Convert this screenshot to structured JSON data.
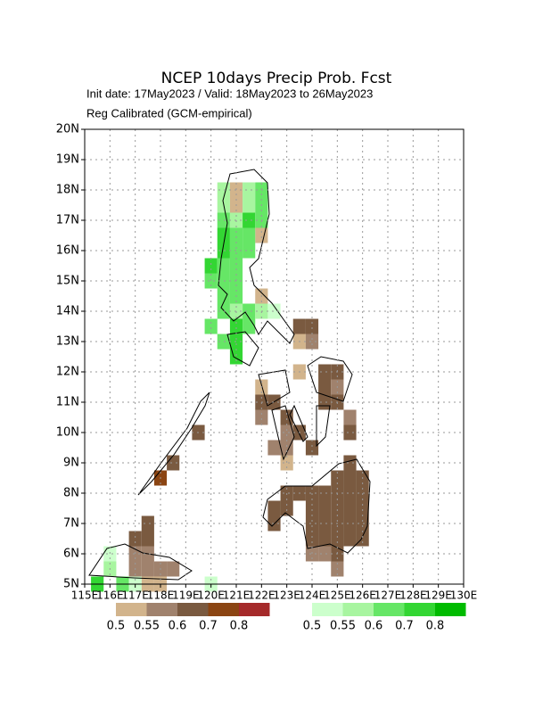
{
  "chart_data": {
    "type": "grid-map",
    "title": "NCEP 10days Precip Prob. Fcst",
    "subtitle": "Init date: 17May2023 / Valid: 18May2023 to 26May2023",
    "method": "Reg Calibrated (GCM-empirical)",
    "xlim": [
      115,
      130
    ],
    "ylim": [
      5,
      20
    ],
    "xticks": [
      {
        "value": 115,
        "label": "115E"
      },
      {
        "value": 116,
        "label": "116E"
      },
      {
        "value": 117,
        "label": "117E"
      },
      {
        "value": 118,
        "label": "118E"
      },
      {
        "value": 119,
        "label": "119E"
      },
      {
        "value": 120,
        "label": "120E"
      },
      {
        "value": 121,
        "label": "121E"
      },
      {
        "value": 122,
        "label": "122E"
      },
      {
        "value": 123,
        "label": "123E"
      },
      {
        "value": 124,
        "label": "124E"
      },
      {
        "value": 125,
        "label": "125E"
      },
      {
        "value": 126,
        "label": "126E"
      },
      {
        "value": 127,
        "label": "127E"
      },
      {
        "value": 128,
        "label": "128E"
      },
      {
        "value": 129,
        "label": "129E"
      },
      {
        "value": 130,
        "label": "130E"
      }
    ],
    "yticks": [
      {
        "value": 5,
        "label": "5N"
      },
      {
        "value": 6,
        "label": "6N"
      },
      {
        "value": 7,
        "label": "7N"
      },
      {
        "value": 8,
        "label": "8N"
      },
      {
        "value": 9,
        "label": "9N"
      },
      {
        "value": 10,
        "label": "10N"
      },
      {
        "value": 11,
        "label": "11N"
      },
      {
        "value": 12,
        "label": "12N"
      },
      {
        "value": 13,
        "label": "13N"
      },
      {
        "value": 14,
        "label": "14N"
      },
      {
        "value": 15,
        "label": "15N"
      },
      {
        "value": 16,
        "label": "16N"
      },
      {
        "value": 17,
        "label": "17N"
      },
      {
        "value": 18,
        "label": "18N"
      },
      {
        "value": 19,
        "label": "19N"
      },
      {
        "value": 20,
        "label": "20N"
      }
    ],
    "grid": true,
    "cell_size": 0.5,
    "legend_levels": [
      0.5,
      0.55,
      0.6,
      0.7,
      0.8
    ],
    "dry_colors": [
      "#d2b48c",
      "#a0826d",
      "#7a5a40",
      "#8b4513",
      "#a52a2a"
    ],
    "wet_colors": [
      "#ccffcc",
      "#a8f5a0",
      "#66e666",
      "#33d633",
      "#00bb00"
    ],
    "dry_cells": [
      [
        121,
        18,
        0.5
      ],
      [
        121,
        17.5,
        0.5
      ],
      [
        122,
        16.5,
        0.5
      ],
      [
        122,
        14.5,
        0.5
      ],
      [
        123.5,
        13.5,
        0.6
      ],
      [
        124,
        13.5,
        0.6
      ],
      [
        123.5,
        13,
        0.5
      ],
      [
        124,
        13,
        0.55
      ],
      [
        123.5,
        12,
        0.5
      ],
      [
        124.5,
        12,
        0.6
      ],
      [
        125,
        12,
        0.6
      ],
      [
        122,
        11.5,
        0.5
      ],
      [
        124.5,
        11.5,
        0.6
      ],
      [
        125,
        11.5,
        0.55
      ],
      [
        122,
        11,
        0.6
      ],
      [
        122.5,
        11,
        0.6
      ],
      [
        124.5,
        11,
        0.6
      ],
      [
        125,
        11,
        0.6
      ],
      [
        122,
        10.5,
        0.55
      ],
      [
        123,
        10.5,
        0.6
      ],
      [
        125.5,
        10.5,
        0.55
      ],
      [
        123,
        10,
        0.55
      ],
      [
        123.5,
        10,
        0.6
      ],
      [
        125.5,
        10,
        0.6
      ],
      [
        122.5,
        9.5,
        0.55
      ],
      [
        123,
        9.5,
        0.55
      ],
      [
        124,
        9.5,
        0.6
      ],
      [
        123,
        9,
        0.5
      ],
      [
        125.5,
        9,
        0.6
      ],
      [
        125,
        8.5,
        0.6
      ],
      [
        125.5,
        8.5,
        0.6
      ],
      [
        126,
        8.5,
        0.6
      ],
      [
        123,
        8,
        0.6
      ],
      [
        123.5,
        8,
        0.6
      ],
      [
        124,
        8,
        0.6
      ],
      [
        124.5,
        8,
        0.6
      ],
      [
        125,
        8,
        0.6
      ],
      [
        125.5,
        8,
        0.6
      ],
      [
        126,
        8,
        0.6
      ],
      [
        122.5,
        7.5,
        0.6
      ],
      [
        123,
        7.5,
        0.6
      ],
      [
        124,
        7.5,
        0.6
      ],
      [
        124.5,
        7.5,
        0.6
      ],
      [
        125,
        7.5,
        0.6
      ],
      [
        125.5,
        7.5,
        0.6
      ],
      [
        126,
        7.5,
        0.6
      ],
      [
        122.5,
        7,
        0.6
      ],
      [
        124,
        7,
        0.6
      ],
      [
        124.5,
        7,
        0.6
      ],
      [
        125,
        7,
        0.6
      ],
      [
        125.5,
        7,
        0.6
      ],
      [
        126,
        7,
        0.6
      ],
      [
        124,
        6.5,
        0.6
      ],
      [
        124.5,
        6.5,
        0.6
      ],
      [
        125,
        6.5,
        0.6
      ],
      [
        125.5,
        6.5,
        0.6
      ],
      [
        126,
        6.5,
        0.6
      ],
      [
        124,
        6,
        0.55
      ],
      [
        124.5,
        6,
        0.55
      ],
      [
        125,
        6,
        0.6
      ],
      [
        125,
        5.5,
        0.55
      ],
      [
        119.5,
        10,
        0.6
      ],
      [
        118.5,
        9,
        0.6
      ],
      [
        118,
        8.5,
        0.7
      ],
      [
        117.5,
        7,
        0.6
      ],
      [
        117,
        6.5,
        0.6
      ],
      [
        117.5,
        6.5,
        0.6
      ],
      [
        117,
        6,
        0.55
      ],
      [
        117.5,
        6,
        0.55
      ],
      [
        117,
        5.5,
        0.55
      ],
      [
        117.5,
        5.5,
        0.55
      ],
      [
        118,
        5.5,
        0.55
      ],
      [
        118.5,
        5.5,
        0.55
      ],
      [
        117.5,
        5,
        0.5
      ],
      [
        118,
        5,
        0.5
      ]
    ],
    "wet_cells": [
      [
        120.5,
        18,
        0.55
      ],
      [
        121.5,
        18,
        0.55
      ],
      [
        122,
        18,
        0.6
      ],
      [
        120.5,
        17.5,
        0.55
      ],
      [
        121.5,
        17.5,
        0.55
      ],
      [
        122,
        17.5,
        0.6
      ],
      [
        120.5,
        17,
        0.6
      ],
      [
        121,
        17,
        0.55
      ],
      [
        121.5,
        17,
        0.7
      ],
      [
        122,
        17,
        0.6
      ],
      [
        120.5,
        16.5,
        0.7
      ],
      [
        121,
        16.5,
        0.6
      ],
      [
        121.5,
        16.5,
        0.6
      ],
      [
        120.5,
        16,
        0.7
      ],
      [
        121,
        16,
        0.6
      ],
      [
        121.5,
        16,
        0.6
      ],
      [
        120,
        15.5,
        0.7
      ],
      [
        120.5,
        15.5,
        0.6
      ],
      [
        121,
        15.5,
        0.6
      ],
      [
        120,
        15,
        0.6
      ],
      [
        120.5,
        15,
        0.6
      ],
      [
        121,
        15,
        0.6
      ],
      [
        120.5,
        14.5,
        0.6
      ],
      [
        121,
        14.5,
        0.6
      ],
      [
        120.5,
        14,
        0.6
      ],
      [
        121,
        14,
        0.55
      ],
      [
        121.5,
        14,
        0.6
      ],
      [
        122,
        14,
        0.55
      ],
      [
        122.5,
        14,
        0.5
      ],
      [
        120,
        13.5,
        0.6
      ],
      [
        121,
        13.5,
        0.7
      ],
      [
        121.5,
        13.5,
        0.6
      ],
      [
        120.5,
        13,
        0.6
      ],
      [
        121,
        13,
        0.7
      ],
      [
        121,
        12.5,
        0.7
      ],
      [
        115.5,
        5,
        0.7
      ],
      [
        116,
        5.5,
        0.55
      ],
      [
        116,
        6,
        0.5
      ],
      [
        116.5,
        5,
        0.6
      ],
      [
        117,
        5,
        0.5
      ],
      [
        120,
        5,
        0.5
      ]
    ]
  }
}
